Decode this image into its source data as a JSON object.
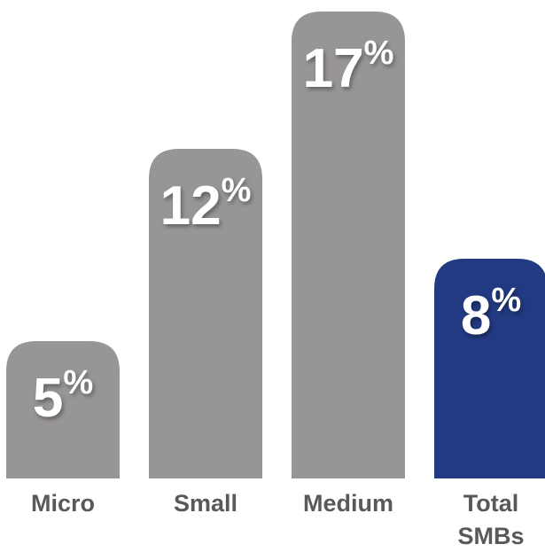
{
  "chart_data": {
    "type": "bar",
    "categories": [
      [
        "Micro"
      ],
      [
        "Small"
      ],
      [
        "Medium"
      ],
      [
        "Total",
        "SMBs"
      ]
    ],
    "values": [
      5,
      12,
      17,
      8
    ],
    "value_suffix": "%",
    "bar_colors": [
      "#989595",
      "#989595",
      "#989595",
      "#223a82"
    ],
    "label_color": "#58595b",
    "value_color": "#ffffff",
    "ylim": [
      0,
      18
    ],
    "grid": false,
    "title": "",
    "xlabel": "",
    "ylabel": ""
  }
}
